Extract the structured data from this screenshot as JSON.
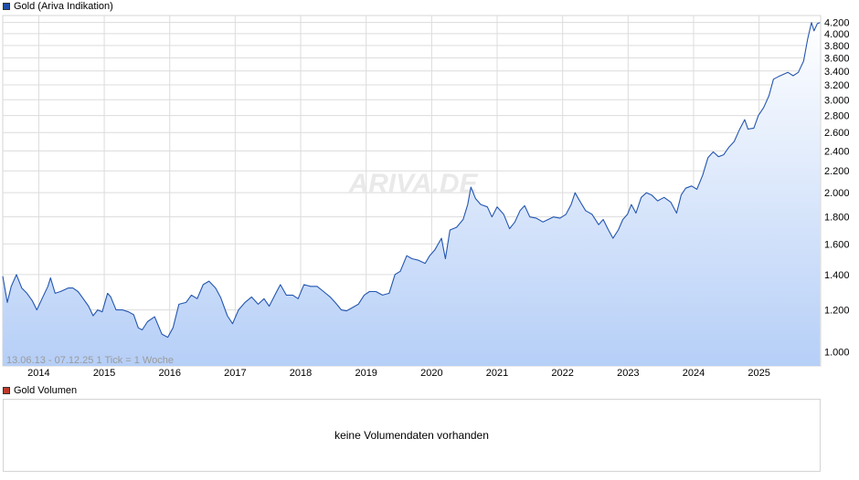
{
  "legend": {
    "price_label": "Gold (Ariva Indikation)",
    "price_color": "#1f4fa8",
    "volume_label": "Gold Volumen",
    "volume_color": "#c0392b"
  },
  "watermark": "ARIVA.DE",
  "range_info": "13.06.13 - 07.12.25    1 Tick = 1 Woche",
  "volume_panel": {
    "message": "keine Volumendaten vorhanden"
  },
  "chart_data": {
    "type": "area",
    "y_scale": "log",
    "ylim": [
      940,
      4330
    ],
    "xlim": [
      2013.45,
      2025.94
    ],
    "y_ticks": [
      1000,
      1200,
      1400,
      1600,
      1800,
      2000,
      2200,
      2400,
      2600,
      2800,
      3000,
      3200,
      3400,
      3600,
      3800,
      4000,
      4200
    ],
    "y_tick_labels": [
      "1.000",
      "1.200",
      "1.400",
      "1.600",
      "1.800",
      "2.000",
      "2.200",
      "2.400",
      "2.600",
      "2.800",
      "3.000",
      "3.200",
      "3.400",
      "3.600",
      "3.800",
      "4.000",
      "4.200"
    ],
    "x_ticks": [
      2014,
      2015,
      2016,
      2017,
      2018,
      2019,
      2020,
      2021,
      2022,
      2023,
      2024,
      2025
    ],
    "x_tick_labels": [
      "2014",
      "2015",
      "2016",
      "2017",
      "2018",
      "2019",
      "2020",
      "2021",
      "2022",
      "2023",
      "2024",
      "2025"
    ],
    "grid": true,
    "series": [
      {
        "line_color": "#2456b0",
        "points": [
          [
            2013.45,
            1390
          ],
          [
            2013.52,
            1240
          ],
          [
            2013.58,
            1330
          ],
          [
            2013.66,
            1400
          ],
          [
            2013.74,
            1320
          ],
          [
            2013.82,
            1290
          ],
          [
            2013.9,
            1250
          ],
          [
            2013.97,
            1200
          ],
          [
            2014.05,
            1260
          ],
          [
            2014.14,
            1330
          ],
          [
            2014.18,
            1380
          ],
          [
            2014.25,
            1290
          ],
          [
            2014.33,
            1300
          ],
          [
            2014.45,
            1320
          ],
          [
            2014.52,
            1320
          ],
          [
            2014.6,
            1300
          ],
          [
            2014.68,
            1260
          ],
          [
            2014.76,
            1220
          ],
          [
            2014.83,
            1170
          ],
          [
            2014.9,
            1200
          ],
          [
            2014.97,
            1190
          ],
          [
            2015.05,
            1290
          ],
          [
            2015.1,
            1270
          ],
          [
            2015.18,
            1200
          ],
          [
            2015.28,
            1200
          ],
          [
            2015.37,
            1190
          ],
          [
            2015.45,
            1175
          ],
          [
            2015.52,
            1110
          ],
          [
            2015.58,
            1100
          ],
          [
            2015.66,
            1140
          ],
          [
            2015.77,
            1165
          ],
          [
            2015.88,
            1080
          ],
          [
            2015.97,
            1065
          ],
          [
            2016.05,
            1110
          ],
          [
            2016.14,
            1230
          ],
          [
            2016.25,
            1240
          ],
          [
            2016.33,
            1280
          ],
          [
            2016.42,
            1260
          ],
          [
            2016.51,
            1340
          ],
          [
            2016.6,
            1360
          ],
          [
            2016.7,
            1320
          ],
          [
            2016.78,
            1265
          ],
          [
            2016.88,
            1170
          ],
          [
            2016.96,
            1130
          ],
          [
            2017.05,
            1200
          ],
          [
            2017.15,
            1240
          ],
          [
            2017.25,
            1270
          ],
          [
            2017.35,
            1230
          ],
          [
            2017.44,
            1260
          ],
          [
            2017.52,
            1220
          ],
          [
            2017.62,
            1290
          ],
          [
            2017.69,
            1340
          ],
          [
            2017.78,
            1280
          ],
          [
            2017.88,
            1280
          ],
          [
            2017.96,
            1260
          ],
          [
            2018.05,
            1340
          ],
          [
            2018.15,
            1330
          ],
          [
            2018.25,
            1330
          ],
          [
            2018.35,
            1300
          ],
          [
            2018.45,
            1270
          ],
          [
            2018.55,
            1230
          ],
          [
            2018.62,
            1200
          ],
          [
            2018.7,
            1195
          ],
          [
            2018.78,
            1210
          ],
          [
            2018.88,
            1230
          ],
          [
            2018.97,
            1280
          ],
          [
            2019.05,
            1300
          ],
          [
            2019.15,
            1300
          ],
          [
            2019.25,
            1280
          ],
          [
            2019.35,
            1290
          ],
          [
            2019.44,
            1400
          ],
          [
            2019.52,
            1420
          ],
          [
            2019.62,
            1520
          ],
          [
            2019.7,
            1500
          ],
          [
            2019.8,
            1490
          ],
          [
            2019.9,
            1470
          ],
          [
            2019.97,
            1520
          ],
          [
            2020.05,
            1560
          ],
          [
            2020.15,
            1640
          ],
          [
            2020.21,
            1500
          ],
          [
            2020.28,
            1700
          ],
          [
            2020.38,
            1720
          ],
          [
            2020.48,
            1780
          ],
          [
            2020.55,
            1900
          ],
          [
            2020.6,
            2050
          ],
          [
            2020.67,
            1950
          ],
          [
            2020.75,
            1900
          ],
          [
            2020.85,
            1880
          ],
          [
            2020.92,
            1800
          ],
          [
            2021.0,
            1880
          ],
          [
            2021.1,
            1820
          ],
          [
            2021.19,
            1710
          ],
          [
            2021.27,
            1760
          ],
          [
            2021.35,
            1850
          ],
          [
            2021.42,
            1890
          ],
          [
            2021.5,
            1800
          ],
          [
            2021.6,
            1790
          ],
          [
            2021.7,
            1760
          ],
          [
            2021.78,
            1780
          ],
          [
            2021.86,
            1800
          ],
          [
            2021.96,
            1790
          ],
          [
            2022.05,
            1820
          ],
          [
            2022.13,
            1900
          ],
          [
            2022.19,
            2000
          ],
          [
            2022.25,
            1940
          ],
          [
            2022.35,
            1850
          ],
          [
            2022.45,
            1820
          ],
          [
            2022.55,
            1740
          ],
          [
            2022.62,
            1780
          ],
          [
            2022.7,
            1700
          ],
          [
            2022.77,
            1640
          ],
          [
            2022.85,
            1700
          ],
          [
            2022.92,
            1780
          ],
          [
            2022.99,
            1820
          ],
          [
            2023.05,
            1900
          ],
          [
            2023.12,
            1830
          ],
          [
            2023.2,
            1960
          ],
          [
            2023.28,
            2000
          ],
          [
            2023.36,
            1980
          ],
          [
            2023.45,
            1930
          ],
          [
            2023.55,
            1960
          ],
          [
            2023.65,
            1920
          ],
          [
            2023.74,
            1830
          ],
          [
            2023.81,
            1980
          ],
          [
            2023.88,
            2040
          ],
          [
            2023.97,
            2060
          ],
          [
            2024.05,
            2030
          ],
          [
            2024.14,
            2160
          ],
          [
            2024.22,
            2330
          ],
          [
            2024.3,
            2390
          ],
          [
            2024.38,
            2340
          ],
          [
            2024.46,
            2360
          ],
          [
            2024.54,
            2440
          ],
          [
            2024.62,
            2500
          ],
          [
            2024.7,
            2630
          ],
          [
            2024.78,
            2750
          ],
          [
            2024.83,
            2640
          ],
          [
            2024.92,
            2650
          ],
          [
            2024.99,
            2800
          ],
          [
            2025.07,
            2900
          ],
          [
            2025.15,
            3050
          ],
          [
            2025.22,
            3280
          ],
          [
            2025.3,
            3320
          ],
          [
            2025.37,
            3350
          ],
          [
            2025.44,
            3380
          ],
          [
            2025.52,
            3330
          ],
          [
            2025.6,
            3380
          ],
          [
            2025.68,
            3550
          ],
          [
            2025.74,
            3900
          ],
          [
            2025.8,
            4200
          ],
          [
            2025.84,
            4050
          ],
          [
            2025.89,
            4180
          ],
          [
            2025.93,
            4200
          ]
        ]
      }
    ]
  }
}
